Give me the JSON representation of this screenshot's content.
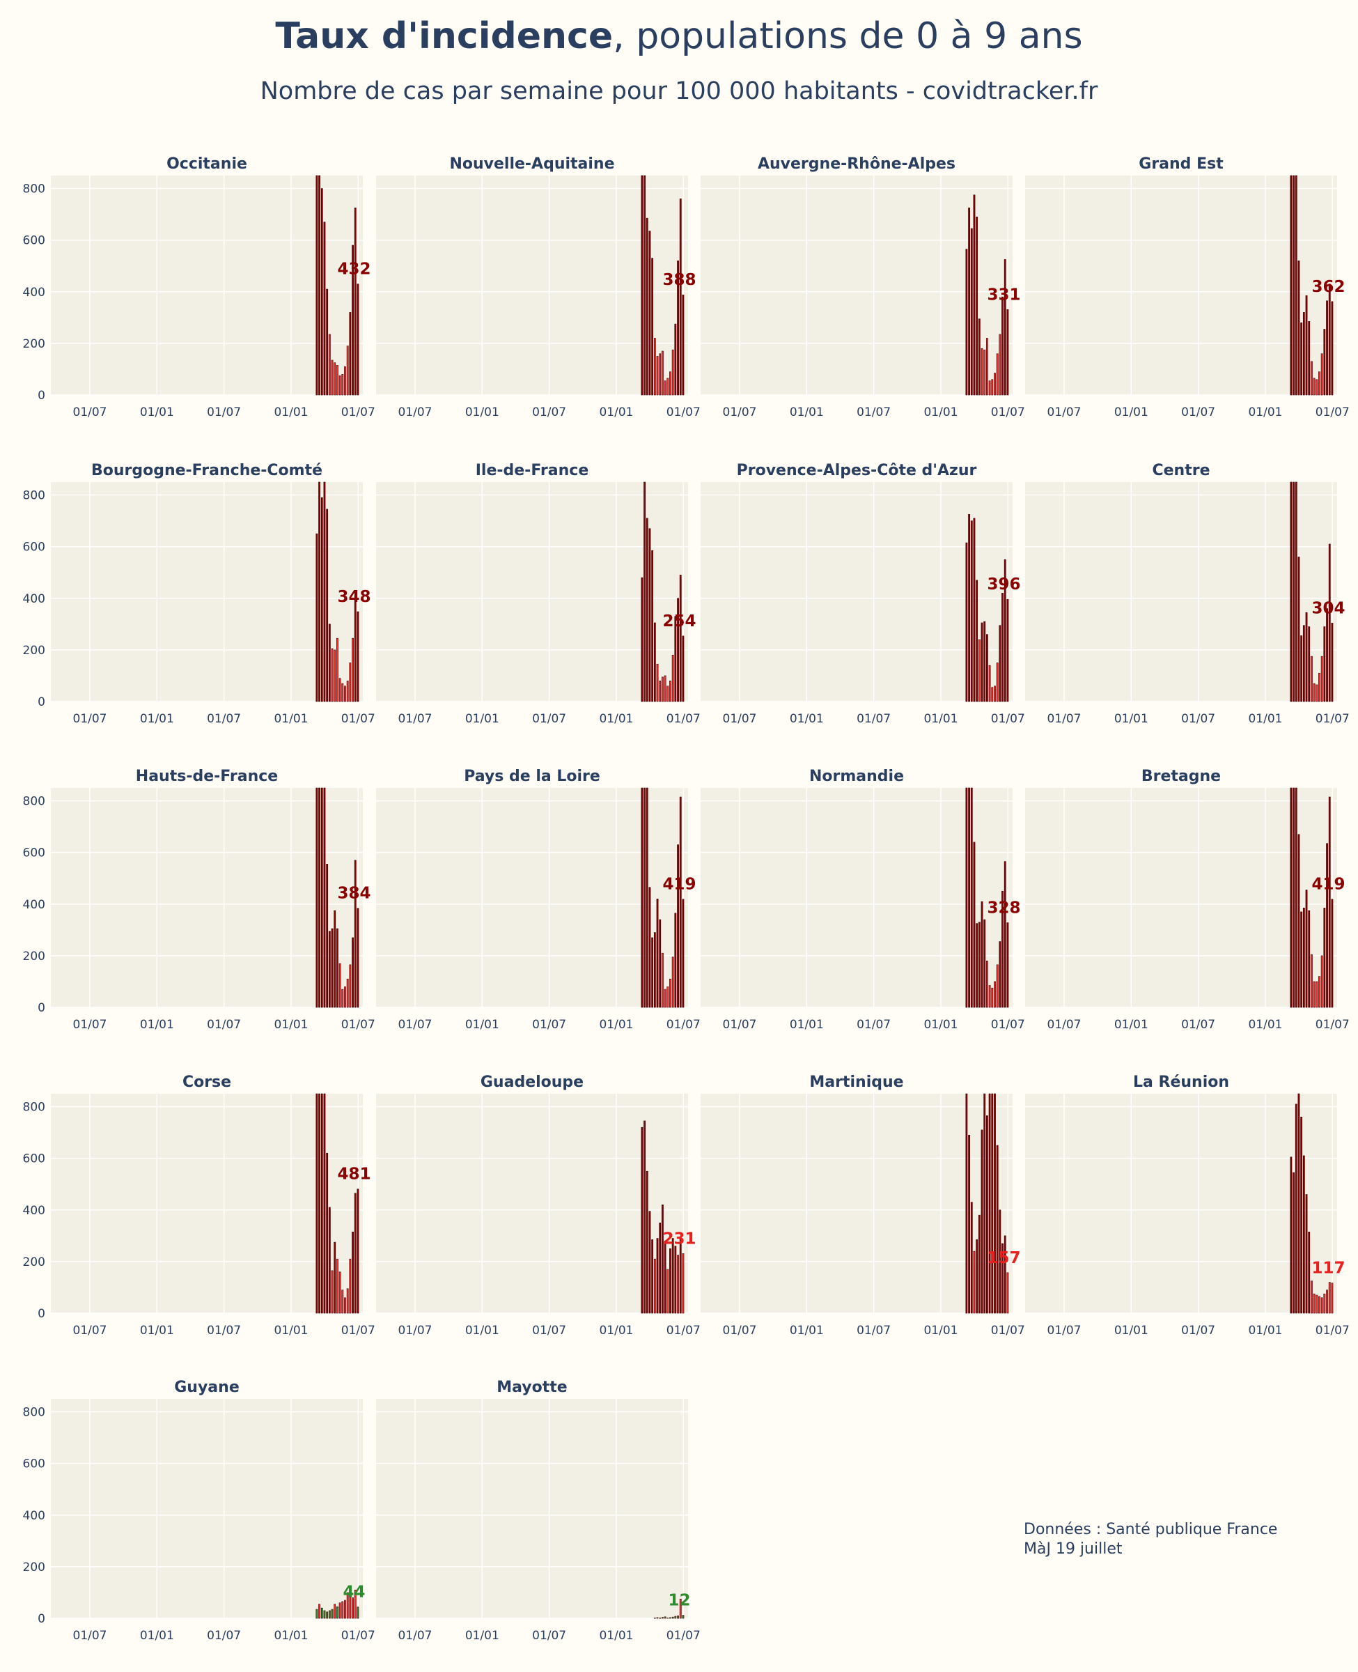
{
  "header": {
    "title_bold": "Taux d'incidence",
    "title_rest": ", populations de 0 à 9 ans",
    "subtitle": "Nombre de cas par semaine pour 100 000 habitants - covidtracker.fr"
  },
  "footer": {
    "source": "Données : Santé publique France",
    "updated": "MàJ 19 juillet"
  },
  "colors": {
    "background": "#fffdf5",
    "plot_bg": "#f2efe4",
    "grid": "#ffffff",
    "high": "#8b0000",
    "medium": "#ff2b2b",
    "low": "#2e8b2e",
    "text": "#2a3f5f"
  },
  "chart_data": {
    "type": "bar",
    "y_range": [
      0,
      850
    ],
    "y_ticks": [
      "0",
      "200",
      "400",
      "600",
      "800"
    ],
    "x_ticks": [
      "01/07",
      "01/01",
      "01/07",
      "01/01",
      "01/07"
    ],
    "panels": [
      {
        "name": "Occitanie",
        "last": 432,
        "values": [
          850,
          850,
          800,
          670,
          410,
          235,
          135,
          125,
          115,
          75,
          80,
          110,
          190,
          320,
          580,
          725,
          430
        ]
      },
      {
        "name": "Nouvelle-Aquitaine",
        "last": 388,
        "values": [
          850,
          850,
          685,
          635,
          530,
          220,
          150,
          160,
          170,
          55,
          65,
          90,
          175,
          275,
          520,
          760,
          388
        ]
      },
      {
        "name": "Auvergne-Rhône-Alpes",
        "last": 331,
        "values": [
          565,
          725,
          645,
          775,
          690,
          295,
          180,
          175,
          220,
          55,
          60,
          85,
          160,
          235,
          380,
          525,
          331
        ]
      },
      {
        "name": "Grand Est",
        "last": 362,
        "values": [
          850,
          850,
          850,
          520,
          280,
          320,
          385,
          285,
          130,
          65,
          60,
          90,
          160,
          255,
          365,
          430,
          362
        ]
      },
      {
        "name": "Bourgogne-Franche-Comté",
        "last": 348,
        "values": [
          650,
          850,
          790,
          850,
          745,
          300,
          205,
          200,
          245,
          90,
          70,
          60,
          80,
          150,
          245,
          410,
          348
        ]
      },
      {
        "name": "Ile-de-France",
        "last": 254,
        "values": [
          480,
          850,
          710,
          670,
          585,
          305,
          145,
          80,
          95,
          100,
          60,
          80,
          180,
          330,
          400,
          490,
          254
        ]
      },
      {
        "name": "Provence-Alpes-Côte d'Azur",
        "last": 396,
        "values": [
          615,
          725,
          700,
          710,
          470,
          240,
          305,
          310,
          260,
          140,
          55,
          60,
          150,
          295,
          420,
          550,
          396
        ]
      },
      {
        "name": "Centre",
        "last": 304,
        "values": [
          850,
          850,
          850,
          560,
          255,
          295,
          345,
          290,
          175,
          70,
          65,
          110,
          175,
          290,
          360,
          610,
          304
        ]
      },
      {
        "name": "Hauts-de-France",
        "last": 384,
        "values": [
          850,
          850,
          850,
          850,
          555,
          295,
          305,
          375,
          305,
          170,
          70,
          80,
          110,
          165,
          270,
          570,
          384
        ]
      },
      {
        "name": "Pays de la Loire",
        "last": 419,
        "values": [
          850,
          850,
          850,
          465,
          270,
          290,
          420,
          340,
          210,
          70,
          80,
          110,
          195,
          365,
          630,
          815,
          419
        ]
      },
      {
        "name": "Normandie",
        "last": 328,
        "values": [
          850,
          850,
          850,
          640,
          325,
          330,
          410,
          340,
          180,
          85,
          75,
          100,
          165,
          255,
          450,
          565,
          328
        ]
      },
      {
        "name": "Bretagne",
        "last": 419,
        "values": [
          850,
          850,
          850,
          670,
          370,
          385,
          455,
          375,
          205,
          100,
          100,
          120,
          200,
          385,
          635,
          815,
          419
        ]
      },
      {
        "name": "Corse",
        "last": 481,
        "values": [
          850,
          850,
          850,
          850,
          620,
          410,
          165,
          275,
          210,
          160,
          90,
          60,
          95,
          210,
          315,
          465,
          481
        ]
      },
      {
        "name": "Guadeloupe",
        "last": 231,
        "values": [
          720,
          745,
          550,
          395,
          285,
          210,
          290,
          350,
          420,
          280,
          170,
          250,
          290,
          260,
          225,
          295,
          231
        ]
      },
      {
        "name": "Martinique",
        "last": 157,
        "values": [
          850,
          690,
          430,
          240,
          285,
          380,
          710,
          850,
          765,
          850,
          850,
          850,
          650,
          400,
          270,
          300,
          157
        ]
      },
      {
        "name": "La Réunion",
        "last": 117,
        "values": [
          605,
          545,
          810,
          850,
          760,
          610,
          460,
          315,
          125,
          75,
          70,
          65,
          60,
          75,
          90,
          120,
          117
        ]
      },
      {
        "name": "Guyane",
        "last": 44,
        "values": [
          35,
          55,
          40,
          30,
          25,
          30,
          35,
          55,
          45,
          60,
          65,
          70,
          100,
          95,
          80,
          110,
          44
        ]
      },
      {
        "name": "Mayotte",
        "last": 12,
        "values": [
          0,
          0,
          0,
          0,
          0,
          2,
          3,
          2,
          4,
          6,
          2,
          3,
          5,
          8,
          10,
          75,
          12
        ]
      }
    ]
  }
}
